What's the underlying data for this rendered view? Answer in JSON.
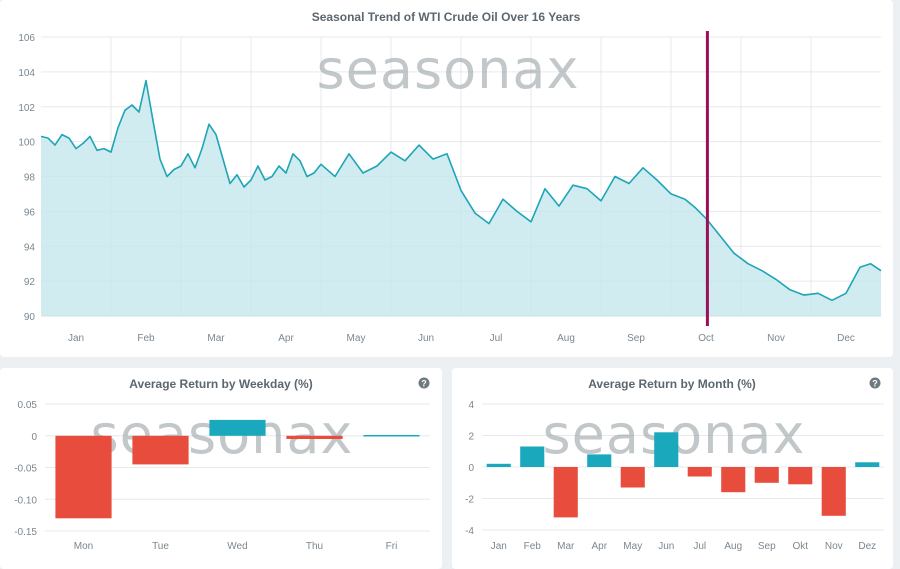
{
  "main": {
    "title": "Seasonal Trend of WTI Crude Oil Over 16 Years",
    "watermark": "seasonax",
    "marker_label": "Oct",
    "colors": {
      "line": "#1ea5b6",
      "fill": "#c4e7ec",
      "marker": "#9b0f5a",
      "grid": "#e6eaec"
    }
  },
  "weekday": {
    "title": "Average Return by Weekday (%)",
    "help_icon": "?",
    "watermark": "seasonax",
    "colors": {
      "positive": "#1aa8bd",
      "negative": "#e84c3d"
    }
  },
  "month": {
    "title": "Average Return by Month (%)",
    "help_icon": "?",
    "watermark": "seasonax",
    "colors": {
      "positive": "#1aa8bd",
      "negative": "#e84c3d"
    }
  },
  "chart_data": [
    {
      "type": "area",
      "title": "Seasonal Trend of WTI Crude Oil Over 16 Years",
      "xlabel": "",
      "ylabel": "",
      "ylim": [
        90,
        106
      ],
      "yticks": [
        90,
        92,
        94,
        96,
        98,
        100,
        102,
        104,
        106
      ],
      "xlim": [
        0,
        12
      ],
      "month_labels": [
        "Jan",
        "Feb",
        "Mar",
        "Apr",
        "May",
        "Jun",
        "Jul",
        "Aug",
        "Sep",
        "Oct",
        "Nov",
        "Dec"
      ],
      "vertical_marker_x": 9.52,
      "series": [
        {
          "name": "WTI Crude Oil seasonal pattern",
          "x": [
            0,
            0.1,
            0.2,
            0.3,
            0.4,
            0.5,
            0.6,
            0.7,
            0.8,
            0.9,
            1.0,
            1.1,
            1.2,
            1.3,
            1.4,
            1.5,
            1.6,
            1.7,
            1.8,
            1.9,
            2.0,
            2.1,
            2.2,
            2.3,
            2.4,
            2.5,
            2.6,
            2.7,
            2.8,
            2.9,
            3.0,
            3.1,
            3.2,
            3.3,
            3.4,
            3.5,
            3.6,
            3.7,
            3.8,
            3.9,
            4.0,
            4.2,
            4.4,
            4.6,
            4.8,
            5.0,
            5.2,
            5.4,
            5.6,
            5.8,
            6.0,
            6.2,
            6.4,
            6.6,
            6.8,
            7.0,
            7.2,
            7.4,
            7.6,
            7.8,
            8.0,
            8.2,
            8.4,
            8.6,
            8.8,
            9.0,
            9.2,
            9.35,
            9.5,
            9.7,
            9.9,
            10.1,
            10.3,
            10.5,
            10.7,
            10.9,
            11.1,
            11.3,
            11.5,
            11.7,
            11.85,
            12.0
          ],
          "values": [
            100.3,
            100.2,
            99.8,
            100.4,
            100.2,
            99.6,
            99.9,
            100.3,
            99.5,
            99.6,
            99.4,
            100.8,
            101.8,
            102.1,
            101.7,
            103.5,
            101.2,
            99.0,
            98.0,
            98.4,
            98.6,
            99.3,
            98.5,
            99.6,
            101.0,
            100.4,
            99.0,
            97.6,
            98.1,
            97.4,
            97.8,
            98.6,
            97.8,
            98.0,
            98.6,
            98.2,
            99.3,
            98.9,
            98.0,
            98.2,
            98.7,
            98.0,
            99.3,
            98.2,
            98.6,
            99.4,
            98.9,
            99.8,
            99.0,
            99.3,
            97.2,
            95.9,
            95.3,
            96.7,
            96.0,
            95.4,
            97.3,
            96.3,
            97.5,
            97.3,
            96.6,
            98.0,
            97.6,
            98.5,
            97.8,
            97.0,
            96.7,
            96.2,
            95.6,
            94.6,
            93.6,
            93.0,
            92.6,
            92.1,
            91.5,
            91.2,
            91.3,
            90.9,
            91.3,
            92.8,
            93.0,
            92.6
          ]
        }
      ]
    },
    {
      "type": "bar",
      "title": "Average Return by Weekday (%)",
      "categories": [
        "Mon",
        "Tue",
        "Wed",
        "Thu",
        "Fri"
      ],
      "values": [
        -0.13,
        -0.045,
        0.025,
        -0.005,
        0.001
      ],
      "ylim": [
        -0.15,
        0.05
      ],
      "yticks": [
        -0.15,
        -0.1,
        -0.05,
        0,
        0.05
      ],
      "ytick_labels": [
        "-0.15",
        "-0.10",
        "-0.05",
        "0",
        "0.05"
      ],
      "xlabel": "",
      "ylabel": ""
    },
    {
      "type": "bar",
      "title": "Average Return by Month (%)",
      "categories": [
        "Jan",
        "Feb",
        "Mar",
        "Apr",
        "May",
        "Jun",
        "Jul",
        "Aug",
        "Sep",
        "Okt",
        "Nov",
        "Dez"
      ],
      "values": [
        0.2,
        1.3,
        -3.2,
        0.8,
        -1.3,
        2.2,
        -0.6,
        -1.6,
        -1.0,
        -1.1,
        -3.1,
        0.3
      ],
      "ylim": [
        -4,
        4
      ],
      "yticks": [
        -4,
        -2,
        0,
        2,
        4
      ],
      "ytick_labels": [
        "-4",
        "-2",
        "0",
        "2",
        "4"
      ],
      "xlabel": "",
      "ylabel": ""
    }
  ]
}
